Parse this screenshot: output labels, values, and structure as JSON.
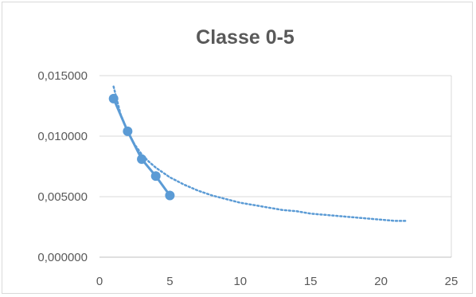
{
  "chart_data": {
    "type": "scatter",
    "title": "Classe 0-5",
    "xlabel": "",
    "ylabel": "",
    "xlim": [
      0,
      25
    ],
    "ylim": [
      0,
      0.015
    ],
    "x_ticks": [
      0,
      5,
      10,
      15,
      20,
      25
    ],
    "x_tick_labels": [
      "0",
      "5",
      "10",
      "15",
      "20",
      "25"
    ],
    "y_ticks": [
      0,
      0.005,
      0.01,
      0.015
    ],
    "y_tick_labels": [
      "0,000000",
      "0,005000",
      "0,010000",
      "0,015000"
    ],
    "grid": "horizontal",
    "legend": "none",
    "colors": {
      "series": "#5b9bd5",
      "grid": "#d9d9d9",
      "text": "#595959"
    },
    "series": [
      {
        "style": "line-with-markers",
        "x": [
          1,
          2,
          3,
          4,
          5
        ],
        "y": [
          0.0131,
          0.0104,
          0.0081,
          0.0067,
          0.0051
        ]
      }
    ],
    "trendline": {
      "style": "dotted",
      "type": "power",
      "x": [
        1,
        1.5,
        2,
        2.5,
        3,
        3.5,
        4,
        4.5,
        5,
        6,
        7,
        8,
        9,
        10,
        11,
        12,
        13,
        14,
        15,
        16,
        17,
        18,
        19,
        20,
        21,
        21.8
      ],
      "y": [
        0.0141,
        0.0118,
        0.0104,
        0.0093,
        0.0085,
        0.0079,
        0.0074,
        0.007,
        0.0066,
        0.006,
        0.0055,
        0.0051,
        0.0048,
        0.0045,
        0.0043,
        0.0041,
        0.0039,
        0.0038,
        0.0036,
        0.0035,
        0.0034,
        0.0033,
        0.0032,
        0.0031,
        0.003,
        0.003
      ]
    }
  }
}
